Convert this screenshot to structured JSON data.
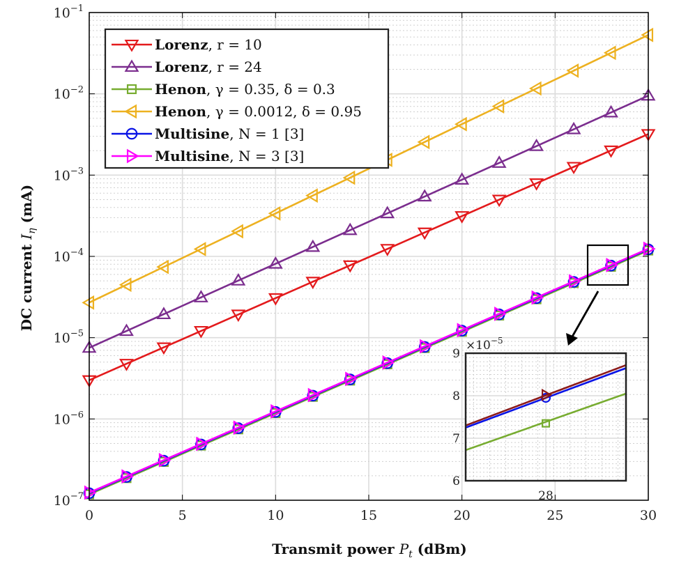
{
  "chart_data": {
    "type": "line",
    "yscale": "log",
    "xlabel": {
      "prefix": "Transmit power",
      "symbol": "P",
      "subscript": "t",
      "unit": "(dBm)"
    },
    "ylabel": {
      "prefix": "DC current",
      "symbol": "I",
      "subscript": "η",
      "unit": "(mA)"
    },
    "xlim": [
      0,
      30
    ],
    "ylim": [
      1e-07,
      0.1
    ],
    "xticks": [
      0,
      5,
      10,
      15,
      20,
      25,
      30
    ],
    "yticks": [
      {
        "value": 1e-07,
        "base": "10",
        "exp": "−7"
      },
      {
        "value": 1e-06,
        "base": "10",
        "exp": "−6"
      },
      {
        "value": 1e-05,
        "base": "10",
        "exp": "−5"
      },
      {
        "value": 0.0001,
        "base": "10",
        "exp": "−4"
      },
      {
        "value": 0.001,
        "base": "10",
        "exp": "−3"
      },
      {
        "value": 0.01,
        "base": "10",
        "exp": "−2"
      },
      {
        "value": 0.1,
        "base": "10",
        "exp": "−1"
      }
    ],
    "grid": true,
    "legend_position": "top-left",
    "x": [
      0,
      2,
      4,
      6,
      8,
      10,
      12,
      14,
      16,
      18,
      20,
      22,
      24,
      26,
      28,
      30
    ],
    "series": [
      {
        "name": "Lorenz",
        "param": ", r = 10",
        "color": "#e31a1c",
        "marker": "triangle-down",
        "start": 3e-06,
        "end": 0.0032
      },
      {
        "name": "Lorenz",
        "param": ", r = 24",
        "color": "#7b2d8e",
        "marker": "triangle-up",
        "start": 7.5e-06,
        "end": 0.0095
      },
      {
        "name": "Henon",
        "param": ", γ = 0.35, δ = 0.3",
        "color": "#77ac30",
        "marker": "square",
        "start": 1.18e-07,
        "end": 0.000118
      },
      {
        "name": "Henon",
        "param": ", γ = 0.0012, δ = 0.95",
        "color": "#edb120",
        "marker": "triangle-left",
        "start": 2.7e-05,
        "end": 0.053
      },
      {
        "name": "Multisine",
        "param": ", N = 1 [3]",
        "color": "#0a14e6",
        "marker": "circle",
        "start": 1.22e-07,
        "end": 0.000122
      },
      {
        "name": "Multisine",
        "param": ", N = 3 [3]",
        "color": "#ff00ff",
        "marker": "triangle-right",
        "start": 1.24e-07,
        "end": 0.000124
      }
    ],
    "inset": {
      "exponent_label": {
        "base": "×10",
        "exp": "−5"
      },
      "yticks": [
        "6",
        "7",
        "8",
        "9"
      ],
      "xticks": [
        "28"
      ],
      "xlim": [
        27,
        29
      ],
      "ylim": [
        6,
        9
      ],
      "lines": [
        {
          "color": "#77ac30",
          "y0": 6.72,
          "y1": 8.05,
          "marker_y": 7.35,
          "marker": "square"
        },
        {
          "color": "#0a14e6",
          "y0": 7.25,
          "y1": 8.65,
          "marker_y": 7.95,
          "marker": "circle"
        },
        {
          "color": "#8b1a1a",
          "y0": 7.3,
          "y1": 8.72,
          "marker_y": 8.02,
          "marker": "triangle-right"
        }
      ]
    }
  }
}
